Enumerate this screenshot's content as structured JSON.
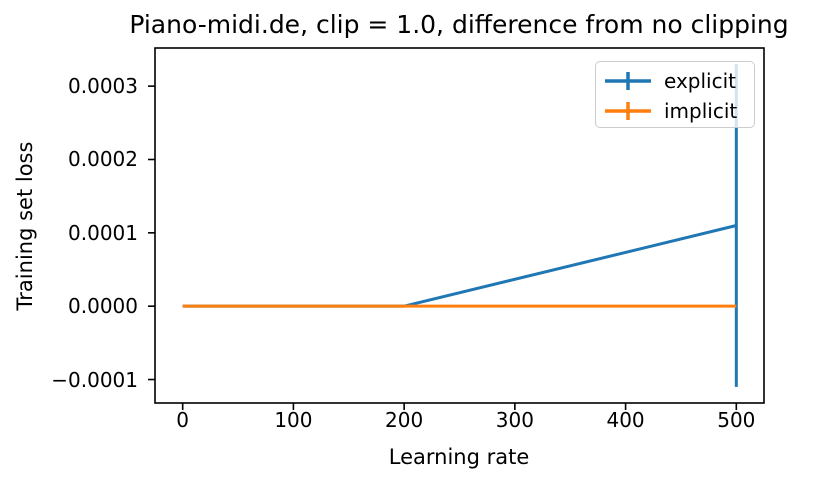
{
  "chart_data": {
    "type": "line",
    "title": "Piano-midi.de, clip = 1.0, difference from no clipping",
    "xlabel": "Learning rate",
    "ylabel": "Training set loss",
    "xlim": [
      -25,
      525
    ],
    "ylim": [
      -0.000132,
      0.000352
    ],
    "grid": false,
    "background": "#ffffff",
    "axis_color": "#000000",
    "x_ticks": {
      "values": [
        0,
        100,
        200,
        300,
        400,
        500
      ],
      "labels": [
        "0",
        "100",
        "200",
        "300",
        "400",
        "500"
      ]
    },
    "y_ticks": {
      "values": [
        -0.0001,
        0.0,
        0.0001,
        0.0002,
        0.0003
      ],
      "labels": [
        "−0.0001",
        "0.0000",
        "0.0001",
        "0.0002",
        "0.0003"
      ]
    },
    "legend": {
      "location": "upper right",
      "entries": [
        {
          "label": "explicit",
          "color": "#1f77b4"
        },
        {
          "label": "implicit",
          "color": "#ff7f0e"
        }
      ]
    },
    "series": [
      {
        "name": "explicit",
        "color": "#1f77b4",
        "x": [
          0,
          200,
          500
        ],
        "y": [
          0.0,
          0.0,
          0.00011
        ],
        "yerr": [
          0.0,
          0.0,
          0.00022
        ]
      },
      {
        "name": "implicit",
        "color": "#ff7f0e",
        "x": [
          0,
          200,
          500
        ],
        "y": [
          0.0,
          0.0,
          0.0
        ],
        "yerr": [
          0.0,
          0.0,
          0.0
        ]
      }
    ]
  }
}
